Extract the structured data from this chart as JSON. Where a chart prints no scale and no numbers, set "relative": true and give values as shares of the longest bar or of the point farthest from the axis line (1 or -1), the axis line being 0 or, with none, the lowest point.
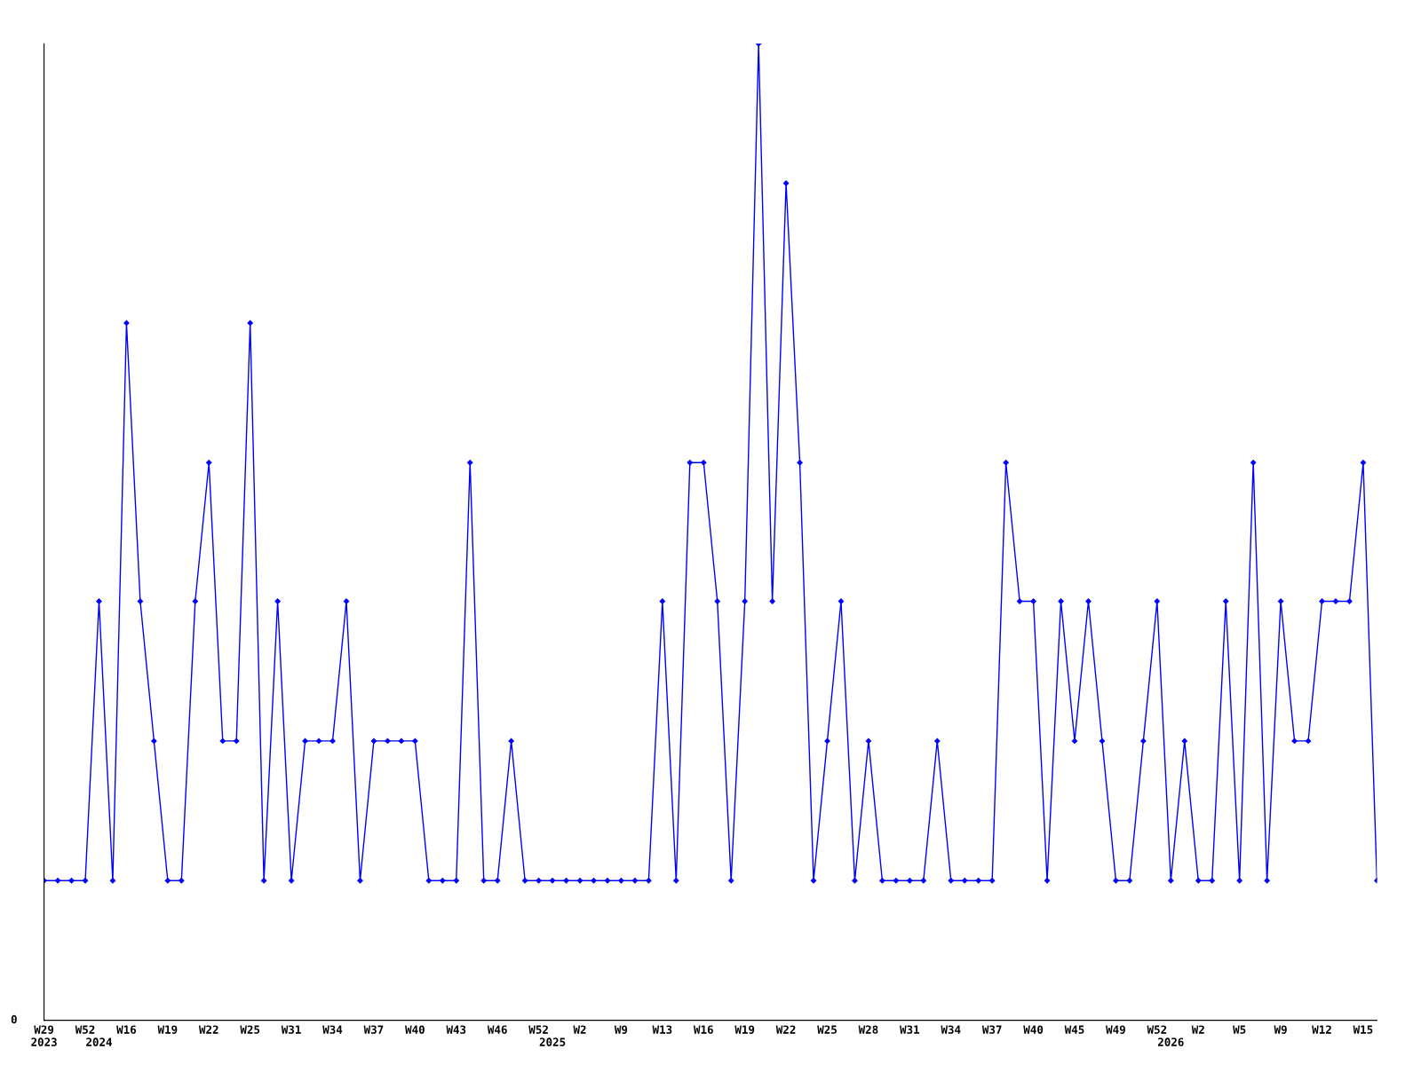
{
  "chart_data": {
    "type": "line",
    "relative": true,
    "marker": "diamond",
    "line_style": "solid",
    "grid": false,
    "legend": false,
    "annotations": [
      "0"
    ],
    "categories": [
      "W29\n2023",
      null,
      null,
      "W52",
      "\n2024",
      null,
      "W16",
      null,
      null,
      "W19",
      null,
      null,
      "W22",
      null,
      null,
      "W25",
      null,
      null,
      "W31",
      null,
      null,
      "W34",
      null,
      null,
      "W37",
      null,
      null,
      "W40",
      null,
      null,
      "W43",
      null,
      null,
      "W46",
      null,
      null,
      "W52",
      "\n2025",
      null,
      "W2",
      null,
      null,
      "W9",
      null,
      null,
      "W13",
      null,
      null,
      "W16",
      null,
      null,
      "W19",
      null,
      null,
      "W22",
      null,
      null,
      "W25",
      null,
      null,
      "W28",
      null,
      null,
      "W31",
      null,
      null,
      "W34",
      null,
      null,
      "W37",
      null,
      null,
      "W40",
      null,
      null,
      "W45",
      null,
      null,
      "W49",
      null,
      null,
      "W52",
      "\n2026",
      null,
      "W2",
      null,
      null,
      "W5",
      null,
      null,
      "W9",
      null,
      null,
      "W12",
      null,
      null,
      "W15",
      null
    ],
    "series": [
      {
        "color": "#0000ff",
        "values": [
          0.143,
          0.143,
          0.143,
          0.143,
          0.429,
          0.143,
          0.714,
          0.429,
          0.286,
          0.143,
          0.143,
          0.429,
          0.571,
          0.286,
          0.286,
          0.714,
          0.143,
          0.429,
          0.143,
          0.286,
          0.286,
          0.286,
          0.429,
          0.143,
          0.286,
          0.286,
          0.286,
          0.286,
          0.143,
          0.143,
          0.143,
          0.571,
          0.143,
          0.143,
          0.286,
          0.143,
          0.143,
          0.143,
          0.143,
          0.143,
          0.143,
          0.143,
          0.143,
          0.143,
          0.143,
          0.429,
          0.143,
          0.571,
          0.571,
          0.429,
          0.143,
          0.429,
          1,
          0.429,
          0.857,
          0.571,
          0.143,
          0.286,
          0.429,
          0.143,
          0.286,
          0.143,
          0.143,
          0.143,
          0.143,
          0.286,
          0.143,
          0.143,
          0.143,
          0.143,
          0.571,
          0.429,
          0.429,
          0.143,
          0.429,
          0.286,
          0.429,
          0.286,
          0.143,
          0.143,
          0.286,
          0.429,
          0.143,
          0.286,
          0.143,
          0.143,
          0.429,
          0.143,
          0.571,
          0.143,
          0.429,
          0.286,
          0.286,
          0.429,
          0.429,
          0.429,
          0.571,
          0.143
        ]
      }
    ]
  }
}
